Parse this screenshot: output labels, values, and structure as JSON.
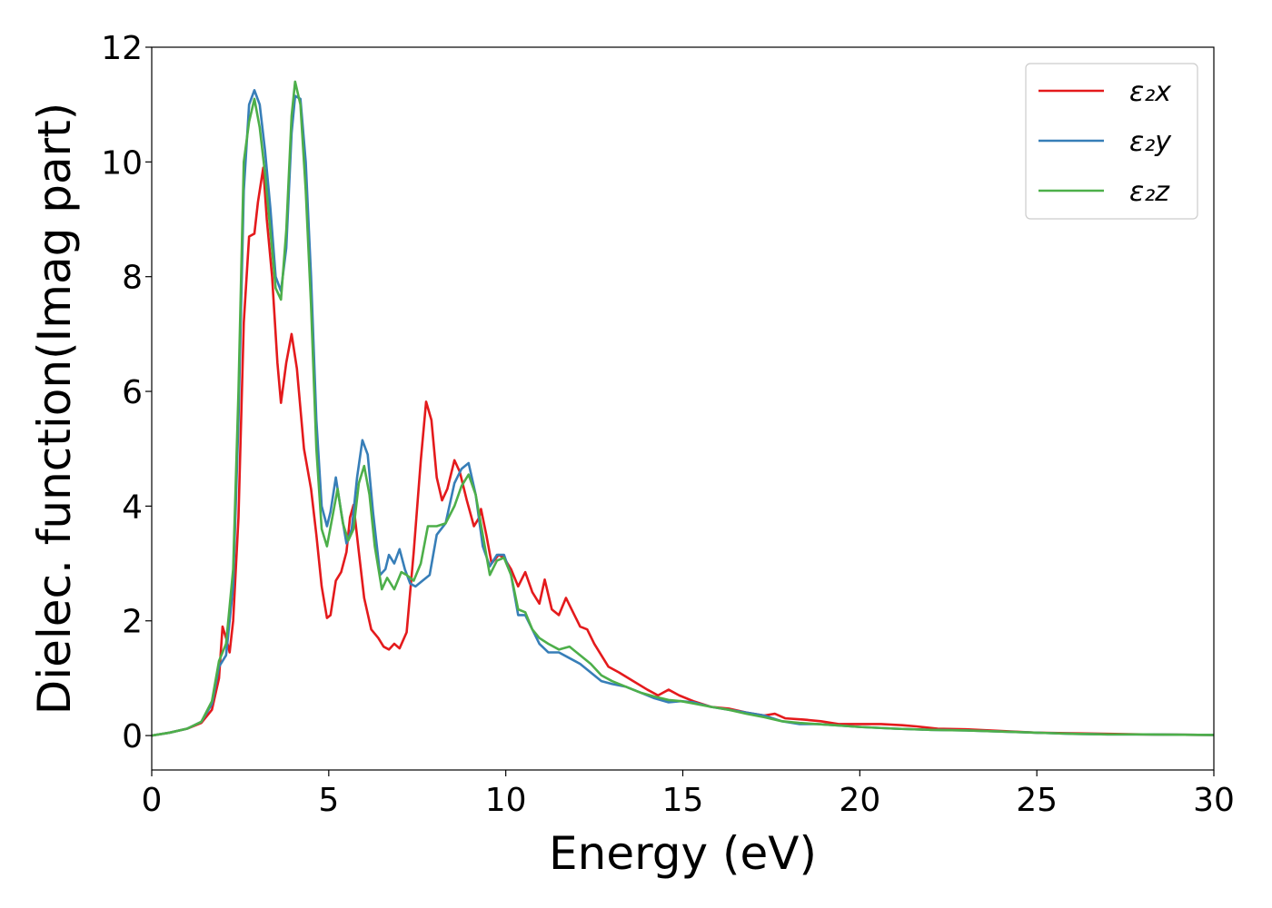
{
  "chart_data": {
    "type": "line",
    "title": "",
    "xlabel": "Energy (eV)",
    "ylabel": "Dielec. function(Imag part)",
    "xlim": [
      0,
      30
    ],
    "ylim": [
      -0.6,
      12
    ],
    "xticks": [
      0,
      5,
      10,
      15,
      20,
      25,
      30
    ],
    "yticks": [
      0,
      2,
      4,
      6,
      8,
      10,
      12
    ],
    "xtick_labels": [
      "0",
      "5",
      "10",
      "15",
      "20",
      "25",
      "30"
    ],
    "ytick_labels": [
      "0",
      "2",
      "4",
      "6",
      "8",
      "10",
      "12"
    ],
    "grid": false,
    "legend": "top-right",
    "series": [
      {
        "name": "ε₂x",
        "color": "#e41a1c",
        "points": [
          [
            0,
            0
          ],
          [
            0.5,
            0.05
          ],
          [
            1,
            0.12
          ],
          [
            1.4,
            0.22
          ],
          [
            1.7,
            0.45
          ],
          [
            1.9,
            1.0
          ],
          [
            2.0,
            1.9
          ],
          [
            2.1,
            1.7
          ],
          [
            2.2,
            1.45
          ],
          [
            2.3,
            2.0
          ],
          [
            2.45,
            3.8
          ],
          [
            2.6,
            7.2
          ],
          [
            2.75,
            8.7
          ],
          [
            2.9,
            8.75
          ],
          [
            3.0,
            9.3
          ],
          [
            3.15,
            9.9
          ],
          [
            3.25,
            9.0
          ],
          [
            3.4,
            8.0
          ],
          [
            3.55,
            6.5
          ],
          [
            3.65,
            5.8
          ],
          [
            3.8,
            6.5
          ],
          [
            3.95,
            7.0
          ],
          [
            4.1,
            6.4
          ],
          [
            4.3,
            5.0
          ],
          [
            4.5,
            4.3
          ],
          [
            4.65,
            3.5
          ],
          [
            4.8,
            2.6
          ],
          [
            4.95,
            2.05
          ],
          [
            5.05,
            2.1
          ],
          [
            5.2,
            2.7
          ],
          [
            5.35,
            2.85
          ],
          [
            5.5,
            3.2
          ],
          [
            5.6,
            3.8
          ],
          [
            5.7,
            4.02
          ],
          [
            5.85,
            3.2
          ],
          [
            6.0,
            2.4
          ],
          [
            6.2,
            1.85
          ],
          [
            6.4,
            1.7
          ],
          [
            6.55,
            1.55
          ],
          [
            6.7,
            1.5
          ],
          [
            6.85,
            1.6
          ],
          [
            7.0,
            1.52
          ],
          [
            7.2,
            1.8
          ],
          [
            7.4,
            3.2
          ],
          [
            7.6,
            4.8
          ],
          [
            7.75,
            5.82
          ],
          [
            7.9,
            5.5
          ],
          [
            8.05,
            4.5
          ],
          [
            8.2,
            4.1
          ],
          [
            8.35,
            4.3
          ],
          [
            8.55,
            4.8
          ],
          [
            8.7,
            4.6
          ],
          [
            8.9,
            4.1
          ],
          [
            9.1,
            3.65
          ],
          [
            9.25,
            3.8
          ],
          [
            9.3,
            3.95
          ],
          [
            9.45,
            3.5
          ],
          [
            9.6,
            3.0
          ],
          [
            9.8,
            3.15
          ],
          [
            9.95,
            3.1
          ],
          [
            10.15,
            2.9
          ],
          [
            10.35,
            2.6
          ],
          [
            10.55,
            2.85
          ],
          [
            10.75,
            2.5
          ],
          [
            10.95,
            2.3
          ],
          [
            11.1,
            2.72
          ],
          [
            11.3,
            2.2
          ],
          [
            11.5,
            2.1
          ],
          [
            11.7,
            2.4
          ],
          [
            11.9,
            2.15
          ],
          [
            12.1,
            1.9
          ],
          [
            12.3,
            1.85
          ],
          [
            12.5,
            1.6
          ],
          [
            12.7,
            1.4
          ],
          [
            12.9,
            1.2
          ],
          [
            13.2,
            1.1
          ],
          [
            13.6,
            0.95
          ],
          [
            14.0,
            0.8
          ],
          [
            14.3,
            0.7
          ],
          [
            14.6,
            0.8
          ],
          [
            14.9,
            0.7
          ],
          [
            15.3,
            0.6
          ],
          [
            15.8,
            0.5
          ],
          [
            16.3,
            0.47
          ],
          [
            16.8,
            0.4
          ],
          [
            17.3,
            0.35
          ],
          [
            17.6,
            0.38
          ],
          [
            17.9,
            0.3
          ],
          [
            18.4,
            0.28
          ],
          [
            18.9,
            0.25
          ],
          [
            19.4,
            0.2
          ],
          [
            20.0,
            0.2
          ],
          [
            20.6,
            0.2
          ],
          [
            21.2,
            0.18
          ],
          [
            21.6,
            0.16
          ],
          [
            22.2,
            0.12
          ],
          [
            23.0,
            0.11
          ],
          [
            24.0,
            0.08
          ],
          [
            25.0,
            0.05
          ],
          [
            26.0,
            0.04
          ],
          [
            27.0,
            0.03
          ],
          [
            28.0,
            0.02
          ],
          [
            30.0,
            0.01
          ]
        ]
      },
      {
        "name": "ε₂y",
        "color": "#377eb8",
        "points": [
          [
            0,
            0
          ],
          [
            0.5,
            0.05
          ],
          [
            1,
            0.12
          ],
          [
            1.4,
            0.24
          ],
          [
            1.7,
            0.55
          ],
          [
            1.9,
            1.2
          ],
          [
            2.1,
            1.4
          ],
          [
            2.3,
            2.6
          ],
          [
            2.45,
            5.5
          ],
          [
            2.6,
            9.5
          ],
          [
            2.75,
            11.0
          ],
          [
            2.9,
            11.25
          ],
          [
            3.05,
            11.0
          ],
          [
            3.2,
            10.2
          ],
          [
            3.35,
            9.2
          ],
          [
            3.5,
            8.0
          ],
          [
            3.65,
            7.75
          ],
          [
            3.8,
            8.5
          ],
          [
            3.95,
            10.5
          ],
          [
            4.05,
            11.15
          ],
          [
            4.2,
            11.1
          ],
          [
            4.35,
            10.0
          ],
          [
            4.5,
            8.0
          ],
          [
            4.65,
            5.5
          ],
          [
            4.8,
            4.0
          ],
          [
            4.95,
            3.65
          ],
          [
            5.05,
            3.9
          ],
          [
            5.2,
            4.5
          ],
          [
            5.35,
            3.9
          ],
          [
            5.5,
            3.35
          ],
          [
            5.65,
            3.6
          ],
          [
            5.8,
            4.5
          ],
          [
            5.95,
            5.15
          ],
          [
            6.1,
            4.9
          ],
          [
            6.25,
            3.9
          ],
          [
            6.45,
            2.8
          ],
          [
            6.6,
            2.9
          ],
          [
            6.7,
            3.15
          ],
          [
            6.85,
            3.0
          ],
          [
            7.0,
            3.25
          ],
          [
            7.15,
            2.9
          ],
          [
            7.3,
            2.65
          ],
          [
            7.45,
            2.6
          ],
          [
            7.65,
            2.7
          ],
          [
            7.85,
            2.8
          ],
          [
            8.05,
            3.5
          ],
          [
            8.3,
            3.7
          ],
          [
            8.55,
            4.4
          ],
          [
            8.75,
            4.65
          ],
          [
            8.95,
            4.75
          ],
          [
            9.15,
            4.2
          ],
          [
            9.35,
            3.3
          ],
          [
            9.55,
            2.95
          ],
          [
            9.75,
            3.15
          ],
          [
            9.95,
            3.15
          ],
          [
            10.15,
            2.8
          ],
          [
            10.35,
            2.1
          ],
          [
            10.55,
            2.1
          ],
          [
            10.75,
            1.85
          ],
          [
            10.95,
            1.6
          ],
          [
            11.2,
            1.45
          ],
          [
            11.5,
            1.45
          ],
          [
            11.8,
            1.35
          ],
          [
            12.1,
            1.25
          ],
          [
            12.4,
            1.1
          ],
          [
            12.7,
            0.95
          ],
          [
            13.0,
            0.9
          ],
          [
            13.4,
            0.85
          ],
          [
            13.8,
            0.75
          ],
          [
            14.2,
            0.65
          ],
          [
            14.6,
            0.58
          ],
          [
            14.95,
            0.6
          ],
          [
            15.3,
            0.58
          ],
          [
            15.8,
            0.5
          ],
          [
            16.3,
            0.45
          ],
          [
            16.8,
            0.4
          ],
          [
            17.3,
            0.35
          ],
          [
            17.8,
            0.25
          ],
          [
            18.3,
            0.2
          ],
          [
            18.8,
            0.2
          ],
          [
            19.3,
            0.18
          ],
          [
            20.0,
            0.15
          ],
          [
            21.0,
            0.12
          ],
          [
            22.0,
            0.1
          ],
          [
            23.0,
            0.09
          ],
          [
            24.0,
            0.07
          ],
          [
            25.0,
            0.05
          ],
          [
            26.0,
            0.03
          ],
          [
            27.0,
            0.02
          ],
          [
            28.0,
            0.02
          ],
          [
            30.0,
            0.01
          ]
        ]
      },
      {
        "name": "ε₂z",
        "color": "#4daf4a",
        "points": [
          [
            0,
            0
          ],
          [
            0.5,
            0.05
          ],
          [
            1,
            0.12
          ],
          [
            1.4,
            0.24
          ],
          [
            1.7,
            0.6
          ],
          [
            1.9,
            1.3
          ],
          [
            2.1,
            1.6
          ],
          [
            2.3,
            2.9
          ],
          [
            2.45,
            6.0
          ],
          [
            2.6,
            10.0
          ],
          [
            2.75,
            10.7
          ],
          [
            2.9,
            11.1
          ],
          [
            3.05,
            10.6
          ],
          [
            3.2,
            9.8
          ],
          [
            3.35,
            8.8
          ],
          [
            3.5,
            7.8
          ],
          [
            3.65,
            7.6
          ],
          [
            3.8,
            8.8
          ],
          [
            3.95,
            10.8
          ],
          [
            4.05,
            11.4
          ],
          [
            4.2,
            11.0
          ],
          [
            4.35,
            9.5
          ],
          [
            4.5,
            7.5
          ],
          [
            4.65,
            5.0
          ],
          [
            4.8,
            3.6
          ],
          [
            4.95,
            3.3
          ],
          [
            5.1,
            3.8
          ],
          [
            5.25,
            4.3
          ],
          [
            5.4,
            3.7
          ],
          [
            5.55,
            3.4
          ],
          [
            5.7,
            3.6
          ],
          [
            5.85,
            4.4
          ],
          [
            6.0,
            4.7
          ],
          [
            6.15,
            4.2
          ],
          [
            6.3,
            3.3
          ],
          [
            6.5,
            2.55
          ],
          [
            6.65,
            2.75
          ],
          [
            6.85,
            2.55
          ],
          [
            7.05,
            2.85
          ],
          [
            7.2,
            2.8
          ],
          [
            7.4,
            2.7
          ],
          [
            7.6,
            3.0
          ],
          [
            7.8,
            3.65
          ],
          [
            8.05,
            3.65
          ],
          [
            8.3,
            3.7
          ],
          [
            8.55,
            4.0
          ],
          [
            8.75,
            4.35
          ],
          [
            8.95,
            4.55
          ],
          [
            9.15,
            4.2
          ],
          [
            9.35,
            3.5
          ],
          [
            9.55,
            2.8
          ],
          [
            9.75,
            3.05
          ],
          [
            9.95,
            3.1
          ],
          [
            10.15,
            2.8
          ],
          [
            10.35,
            2.2
          ],
          [
            10.55,
            2.15
          ],
          [
            10.75,
            1.85
          ],
          [
            10.95,
            1.7
          ],
          [
            11.2,
            1.6
          ],
          [
            11.5,
            1.5
          ],
          [
            11.8,
            1.55
          ],
          [
            12.1,
            1.4
          ],
          [
            12.4,
            1.25
          ],
          [
            12.7,
            1.05
          ],
          [
            13.0,
            0.95
          ],
          [
            13.4,
            0.85
          ],
          [
            13.8,
            0.75
          ],
          [
            14.2,
            0.68
          ],
          [
            14.6,
            0.62
          ],
          [
            14.95,
            0.6
          ],
          [
            15.3,
            0.56
          ],
          [
            15.8,
            0.5
          ],
          [
            16.3,
            0.45
          ],
          [
            16.8,
            0.38
          ],
          [
            17.3,
            0.32
          ],
          [
            17.8,
            0.25
          ],
          [
            18.3,
            0.22
          ],
          [
            18.8,
            0.2
          ],
          [
            19.3,
            0.18
          ],
          [
            20.0,
            0.15
          ],
          [
            21.0,
            0.12
          ],
          [
            22.0,
            0.1
          ],
          [
            23.0,
            0.09
          ],
          [
            24.0,
            0.07
          ],
          [
            25.0,
            0.05
          ],
          [
            26.0,
            0.03
          ],
          [
            27.0,
            0.02
          ],
          [
            28.0,
            0.02
          ],
          [
            30.0,
            0.01
          ]
        ]
      }
    ]
  }
}
